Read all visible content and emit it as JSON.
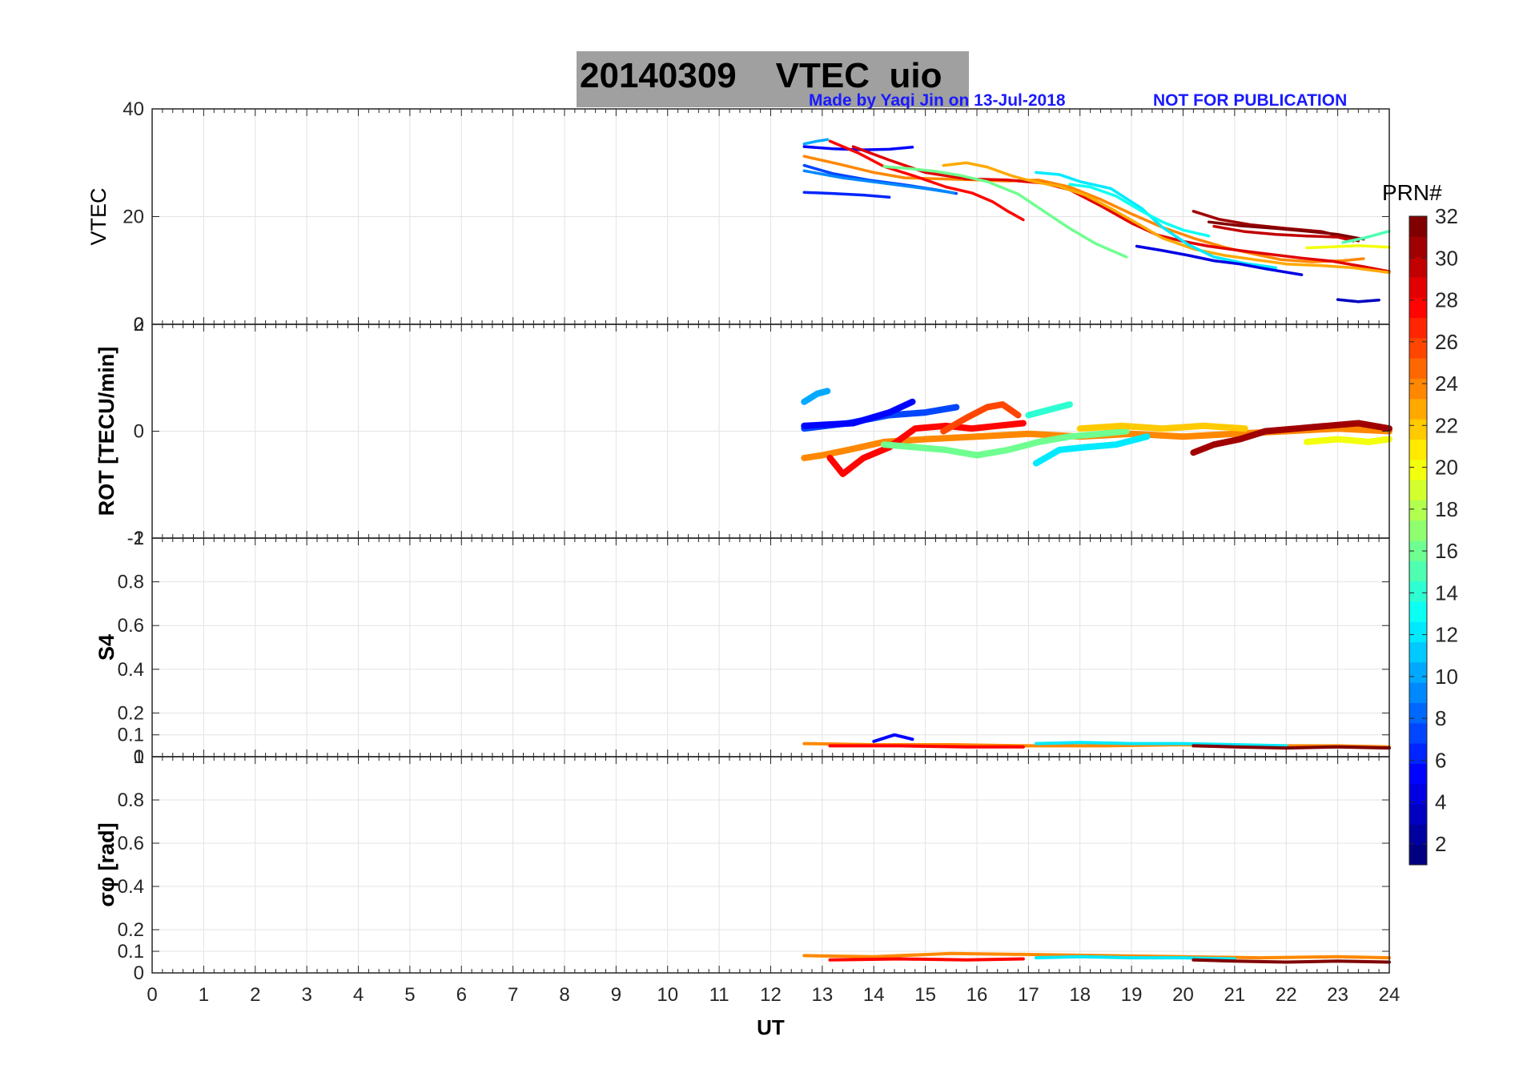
{
  "figure": {
    "title": "20140309    VTEC  uio",
    "credit": "Made by Yaqi Jin on 13-Jul-2018",
    "notice": "NOT FOR PUBLICATION",
    "xlabel": "UT"
  },
  "colorbar": {
    "title": "PRN#",
    "ticks": [
      "2",
      "4",
      "6",
      "8",
      "10",
      "12",
      "14",
      "16",
      "18",
      "20",
      "22",
      "24",
      "26",
      "28",
      "30",
      "32"
    ],
    "range": [
      1,
      32
    ],
    "colormap": "jet"
  },
  "chart_data": [
    {
      "type": "line",
      "ylabel": "VTEC",
      "xlim": [
        0,
        24
      ],
      "ylim": [
        0,
        40
      ],
      "yticks": [
        0,
        20,
        40
      ],
      "ytick_labels": [
        "0",
        "20",
        "40"
      ],
      "xticks": [
        0,
        1,
        2,
        3,
        4,
        5,
        6,
        7,
        8,
        9,
        10,
        11,
        12,
        13,
        14,
        15,
        16,
        17,
        18,
        19,
        20,
        21,
        22,
        23,
        24
      ],
      "grid": true,
      "series": [
        {
          "prn": 10,
          "x": [
            12.65,
            12.9,
            13.1
          ],
          "y": [
            33.5,
            34.0,
            34.3
          ]
        },
        {
          "prn": 5,
          "x": [
            12.65,
            13.2,
            13.8,
            14.3,
            14.75
          ],
          "y": [
            33.0,
            32.6,
            32.4,
            32.5,
            32.9
          ]
        },
        {
          "prn": 7,
          "x": [
            12.65,
            13.2,
            13.9,
            14.6,
            15.2,
            15.6
          ],
          "y": [
            29.5,
            28.0,
            26.8,
            25.9,
            25.0,
            24.3
          ]
        },
        {
          "prn": 9,
          "x": [
            12.65,
            13.4,
            14.2,
            15.0,
            15.55
          ],
          "y": [
            28.5,
            27.2,
            26.2,
            25.2,
            24.4
          ]
        },
        {
          "prn": 6,
          "x": [
            12.65,
            13.2,
            13.8,
            14.3
          ],
          "y": [
            24.5,
            24.3,
            24.0,
            23.6
          ]
        },
        {
          "prn": 24,
          "x": [
            12.65,
            13.3,
            14.0,
            14.6,
            15.3,
            16.0,
            16.6,
            17.2,
            17.8,
            18.4,
            19.0,
            19.6,
            20.2,
            20.8,
            21.4,
            21.9,
            22.5,
            23.1,
            23.5
          ],
          "y": [
            31.2,
            29.8,
            28.2,
            27.2,
            27.0,
            26.8,
            26.6,
            26.8,
            25.5,
            23.2,
            20.5,
            18.0,
            16.0,
            14.3,
            13.0,
            12.0,
            11.6,
            11.8,
            12.2
          ]
        },
        {
          "prn": 28,
          "x": [
            13.15,
            13.7,
            14.2,
            14.8,
            15.4,
            15.9,
            16.3,
            16.6,
            16.9
          ],
          "y": [
            34.0,
            31.8,
            29.3,
            27.5,
            25.5,
            24.4,
            22.8,
            21.0,
            19.4
          ]
        },
        {
          "prn": 29,
          "x": [
            13.6,
            14.3,
            15.0,
            15.8,
            16.6,
            17.3,
            17.8,
            18.4,
            19.0,
            19.5,
            20.0,
            20.5,
            21.1,
            21.7,
            22.3,
            22.9,
            23.5,
            24.0
          ],
          "y": [
            33.0,
            30.5,
            28.2,
            27.0,
            26.8,
            26.2,
            25.0,
            22.0,
            18.8,
            16.6,
            15.4,
            14.5,
            13.7,
            13.0,
            12.3,
            11.7,
            10.7,
            9.8
          ]
        },
        {
          "prn": 16,
          "x": [
            14.2,
            14.7,
            15.2,
            15.7,
            16.2,
            16.8,
            17.3,
            17.8,
            18.3,
            18.9
          ],
          "y": [
            29.3,
            28.9,
            28.4,
            27.6,
            26.5,
            24.2,
            21.0,
            17.8,
            15.0,
            12.5
          ]
        },
        {
          "prn": 23,
          "x": [
            15.35,
            15.8,
            16.2,
            16.7,
            17.1,
            17.6,
            18.1,
            18.6,
            19.1,
            19.6,
            20.2,
            20.8,
            21.4,
            22.0,
            22.7,
            23.3,
            24.0
          ],
          "y": [
            29.5,
            30.0,
            29.2,
            27.5,
            26.5,
            25.6,
            24.0,
            21.5,
            18.8,
            16.0,
            14.0,
            12.8,
            12.0,
            11.2,
            10.9,
            10.5,
            9.6
          ]
        },
        {
          "prn": 12,
          "x": [
            17.15,
            17.6,
            18.0,
            18.6,
            19.2,
            19.6,
            20.1,
            20.6,
            21.2,
            21.8
          ],
          "y": [
            28.2,
            27.8,
            26.5,
            25.2,
            21.5,
            18.0,
            14.8,
            12.5,
            11.3,
            10.5
          ]
        },
        {
          "prn": 13,
          "x": [
            17.8,
            18.2,
            18.7,
            19.2,
            19.6,
            20.0,
            20.5
          ],
          "y": [
            26.0,
            25.5,
            23.8,
            21.0,
            19.0,
            17.5,
            16.4
          ]
        },
        {
          "prn": 4,
          "x": [
            19.1,
            19.6,
            20.1,
            20.6,
            21.1,
            21.6,
            22.3
          ],
          "y": [
            14.5,
            13.7,
            12.8,
            11.8,
            11.2,
            10.3,
            9.2
          ]
        },
        {
          "prn": 31,
          "x": [
            20.2,
            20.7,
            21.3,
            22.0,
            22.7,
            23.4
          ],
          "y": [
            21.0,
            19.5,
            18.5,
            17.8,
            17.2,
            15.5
          ]
        },
        {
          "prn": 32,
          "x": [
            20.5,
            21.1,
            21.8,
            22.4,
            23.0,
            23.5
          ],
          "y": [
            19.0,
            18.3,
            17.8,
            17.3,
            16.7,
            15.8
          ]
        },
        {
          "prn": 30,
          "x": [
            20.6,
            21.2,
            21.8,
            22.4,
            23.0,
            23.3
          ],
          "y": [
            18.2,
            17.2,
            16.7,
            16.4,
            16.2,
            15.5
          ]
        },
        {
          "prn": 20,
          "x": [
            22.4,
            22.9,
            23.4,
            24.0
          ],
          "y": [
            14.2,
            14.4,
            14.6,
            14.3
          ]
        },
        {
          "prn": 15,
          "x": [
            23.1,
            23.5,
            24.0
          ],
          "y": [
            15.2,
            16.0,
            17.3
          ]
        },
        {
          "prn": 3,
          "x": [
            23.0,
            23.4,
            23.8
          ],
          "y": [
            4.6,
            4.2,
            4.5
          ]
        }
      ]
    },
    {
      "type": "line",
      "ylabel": "ROT [TECU/min]",
      "xlim": [
        0,
        24
      ],
      "ylim": [
        -2,
        2
      ],
      "yticks": [
        -2,
        0,
        2
      ],
      "ytick_labels": [
        "-2",
        "0",
        "2"
      ],
      "grid": true,
      "series": [
        {
          "prn": 10,
          "x": [
            12.65,
            12.9,
            13.1
          ],
          "y": [
            0.55,
            0.7,
            0.75
          ]
        },
        {
          "prn": 7,
          "x": [
            12.65,
            13.5,
            14.3,
            15.0,
            15.6
          ],
          "y": [
            0.05,
            0.15,
            0.3,
            0.35,
            0.45
          ]
        },
        {
          "prn": 5,
          "x": [
            12.65,
            13.6,
            14.3,
            14.75
          ],
          "y": [
            0.1,
            0.15,
            0.35,
            0.55
          ]
        },
        {
          "prn": 24,
          "x": [
            12.65,
            13.0,
            13.5,
            14.2,
            15.0,
            16.0,
            17.0,
            18.0,
            19.0,
            20.0,
            21.0,
            22.0,
            23.0,
            24.0
          ],
          "y": [
            -0.5,
            -0.45,
            -0.35,
            -0.2,
            -0.15,
            -0.1,
            -0.05,
            -0.1,
            -0.05,
            -0.1,
            -0.05,
            0.0,
            0.05,
            0.0
          ]
        },
        {
          "prn": 28,
          "x": [
            13.15,
            13.4,
            13.8,
            14.3,
            14.8,
            15.4,
            15.9,
            16.4,
            16.9
          ],
          "y": [
            -0.5,
            -0.8,
            -0.5,
            -0.3,
            0.05,
            0.1,
            0.05,
            0.1,
            0.15
          ]
        },
        {
          "prn": 16,
          "x": [
            14.2,
            14.8,
            15.4,
            16.0,
            16.6,
            17.2,
            17.8,
            18.4,
            18.9
          ],
          "y": [
            -0.25,
            -0.3,
            -0.35,
            -0.45,
            -0.35,
            -0.2,
            -0.1,
            -0.05,
            0.0
          ]
        },
        {
          "prn": 26,
          "x": [
            15.35,
            15.8,
            16.2,
            16.5,
            16.8
          ],
          "y": [
            0.0,
            0.25,
            0.45,
            0.5,
            0.3
          ]
        },
        {
          "prn": 12,
          "x": [
            17.15,
            17.6,
            18.1,
            18.7,
            19.3
          ],
          "y": [
            -0.6,
            -0.35,
            -0.3,
            -0.25,
            -0.1
          ]
        },
        {
          "prn": 14,
          "x": [
            17.0,
            17.4,
            17.8
          ],
          "y": [
            0.3,
            0.4,
            0.5
          ]
        },
        {
          "prn": 22,
          "x": [
            18.0,
            18.8,
            19.6,
            20.4,
            21.2
          ],
          "y": [
            0.05,
            0.1,
            0.05,
            0.1,
            0.05
          ]
        },
        {
          "prn": 31,
          "x": [
            20.2,
            20.6,
            21.1,
            21.6,
            22.2,
            22.8,
            23.4,
            24.0
          ],
          "y": [
            -0.4,
            -0.25,
            -0.15,
            0.0,
            0.05,
            0.1,
            0.15,
            0.05
          ]
        },
        {
          "prn": 20,
          "x": [
            22.4,
            23.0,
            23.6,
            24.0
          ],
          "y": [
            -0.2,
            -0.15,
            -0.2,
            -0.15
          ]
        }
      ]
    },
    {
      "type": "line",
      "ylabel": "S4",
      "xlim": [
        0,
        24
      ],
      "ylim": [
        0,
        1
      ],
      "yticks": [
        0,
        0.1,
        0.2,
        0.4,
        0.6,
        0.8,
        1
      ],
      "ytick_labels": [
        "0",
        "0.1",
        "0.2",
        "0.4",
        "0.6",
        "0.8",
        "1"
      ],
      "grid": true,
      "series": [
        {
          "prn": 24,
          "x": [
            12.65,
            14.0,
            15.5,
            17.0,
            18.5,
            20.0,
            21.5,
            23.0,
            24.0
          ],
          "y": [
            0.06,
            0.055,
            0.055,
            0.05,
            0.05,
            0.055,
            0.05,
            0.05,
            0.045
          ]
        },
        {
          "prn": 28,
          "x": [
            13.15,
            14.5,
            15.8,
            16.9
          ],
          "y": [
            0.05,
            0.05,
            0.045,
            0.045
          ]
        },
        {
          "prn": 5,
          "x": [
            14.0,
            14.4,
            14.75
          ],
          "y": [
            0.07,
            0.1,
            0.08
          ]
        },
        {
          "prn": 12,
          "x": [
            17.15,
            18.0,
            19.0,
            20.0,
            21.0,
            22.0
          ],
          "y": [
            0.06,
            0.065,
            0.06,
            0.06,
            0.055,
            0.05
          ]
        },
        {
          "prn": 32,
          "x": [
            20.2,
            21.0,
            22.0,
            23.0,
            24.0
          ],
          "y": [
            0.05,
            0.045,
            0.04,
            0.045,
            0.04
          ]
        }
      ]
    },
    {
      "type": "line",
      "ylabel": "σφ [rad]",
      "xlim": [
        0,
        24
      ],
      "ylim": [
        0,
        1
      ],
      "yticks": [
        0,
        0.1,
        0.2,
        0.4,
        0.6,
        0.8,
        1
      ],
      "ytick_labels": [
        "0",
        "0.1",
        "0.2",
        "0.4",
        "0.6",
        "0.8",
        "1"
      ],
      "grid": true,
      "series": [
        {
          "prn": 24,
          "x": [
            12.65,
            14.0,
            15.5,
            17.0,
            18.5,
            20.0,
            21.5,
            23.0,
            24.0
          ],
          "y": [
            0.08,
            0.075,
            0.09,
            0.085,
            0.08,
            0.075,
            0.07,
            0.075,
            0.07
          ]
        },
        {
          "prn": 28,
          "x": [
            13.15,
            14.5,
            15.8,
            16.9
          ],
          "y": [
            0.06,
            0.065,
            0.06,
            0.065
          ]
        },
        {
          "prn": 12,
          "x": [
            17.15,
            18.0,
            19.0,
            20.0,
            21.0
          ],
          "y": [
            0.07,
            0.075,
            0.07,
            0.07,
            0.065
          ]
        },
        {
          "prn": 32,
          "x": [
            20.2,
            21.0,
            22.0,
            23.0,
            24.0
          ],
          "y": [
            0.06,
            0.055,
            0.05,
            0.055,
            0.05
          ]
        }
      ]
    }
  ]
}
